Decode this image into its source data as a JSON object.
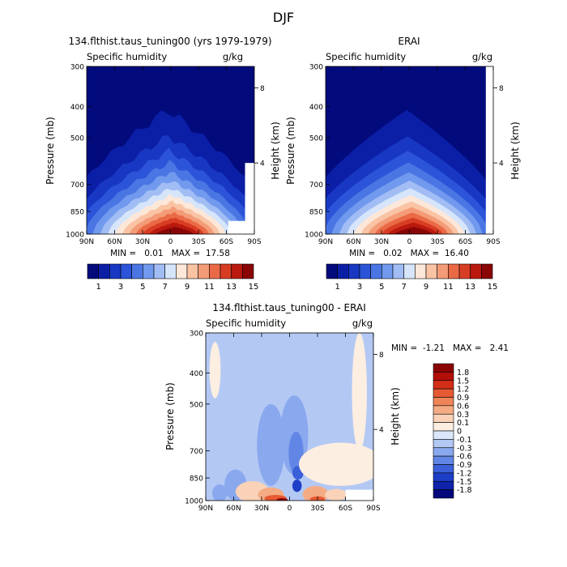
{
  "page_title": "DJF",
  "colors": {
    "qcolors": [
      "#020a7c",
      "#0b1ea6",
      "#1838c4",
      "#2b54d8",
      "#4a76e4",
      "#7199ee",
      "#a1bdf4",
      "#d6e5fa",
      "#fde7d9",
      "#f9c3a4",
      "#f49b77",
      "#ea6a46",
      "#d83d23",
      "#b9190e",
      "#8a0606"
    ],
    "dcolors": [
      "#03087a",
      "#0f22aa",
      "#1d3ec6",
      "#3a5fd8",
      "#6286e6",
      "#8aa8ee",
      "#b3c9f4",
      "#dae7fa",
      "#fdeee2",
      "#f9d2b8",
      "#f4ab84",
      "#ef8458",
      "#e65a33",
      "#d32e18",
      "#b30f09",
      "#8a0404"
    ]
  },
  "chart_data": [
    {
      "type": "contour",
      "title": "134.flthist.taus_tuning00 (yrs 1979-1979)",
      "subtitle_left": "Specific humidity",
      "subtitle_right": "g/kg",
      "ylabel": "Pressure (mb)",
      "ylabel_right": "Height (km)",
      "x_ticks": [
        "90N",
        "60N",
        "30N",
        "0",
        "30S",
        "60S",
        "90S"
      ],
      "y_ticks": [
        "300",
        "400",
        "500",
        "700",
        "850",
        "1000"
      ],
      "height_ticks": [
        "8",
        "4"
      ],
      "ylim_mb": [
        1000,
        300
      ],
      "stats": "MIN =   0.01   MAX =  17.58",
      "min": 0.01,
      "max": 17.58,
      "colorbar_labels": [
        "1",
        "3",
        "5",
        "7",
        "9",
        "11",
        "13",
        "15"
      ],
      "contour_levels": [
        1,
        2,
        3,
        4,
        5,
        6,
        7,
        8,
        9,
        10,
        11,
        12,
        13,
        14
      ]
    },
    {
      "type": "contour",
      "title": "ERAI",
      "subtitle_left": "Specific humidity",
      "subtitle_right": "g/kg",
      "ylabel": "Pressure (mb)",
      "ylabel_right": "Height (km)",
      "x_ticks": [
        "90N",
        "60N",
        "30N",
        "0",
        "30S",
        "60S",
        "90S"
      ],
      "y_ticks": [
        "300",
        "400",
        "500",
        "700",
        "850",
        "1000"
      ],
      "height_ticks": [
        "8",
        "4"
      ],
      "ylim_mb": [
        1000,
        300
      ],
      "stats": "MIN =   0.02   MAX =  16.40",
      "min": 0.02,
      "max": 16.4,
      "colorbar_labels": [
        "1",
        "3",
        "5",
        "7",
        "9",
        "11",
        "13",
        "15"
      ],
      "contour_levels": [
        1,
        2,
        3,
        4,
        5,
        6,
        7,
        8,
        9,
        10,
        11,
        12,
        13,
        14
      ]
    },
    {
      "type": "contour",
      "title": "134.flthist.taus_tuning00 - ERAI",
      "subtitle_left": "Specific humidity",
      "subtitle_right": "g/kg",
      "ylabel": "Pressure (mb)",
      "ylabel_right": "Height (km)",
      "x_ticks": [
        "90N",
        "60N",
        "30N",
        "0",
        "30S",
        "60S",
        "90S"
      ],
      "y_ticks": [
        "300",
        "400",
        "500",
        "700",
        "850",
        "1000"
      ],
      "height_ticks": [
        "8",
        "4"
      ],
      "ylim_mb": [
        1000,
        300
      ],
      "stats": "MIN =  -1.21   MAX =   2.41",
      "min": -1.21,
      "max": 2.41,
      "colorbar_labels": [
        "1.8",
        "1.5",
        "1.2",
        "0.9",
        "0.6",
        "0.3",
        "0.1",
        "0",
        "-0.1",
        "-0.3",
        "-0.6",
        "-0.9",
        "-1.2",
        "-1.5",
        "-1.8"
      ]
    }
  ]
}
